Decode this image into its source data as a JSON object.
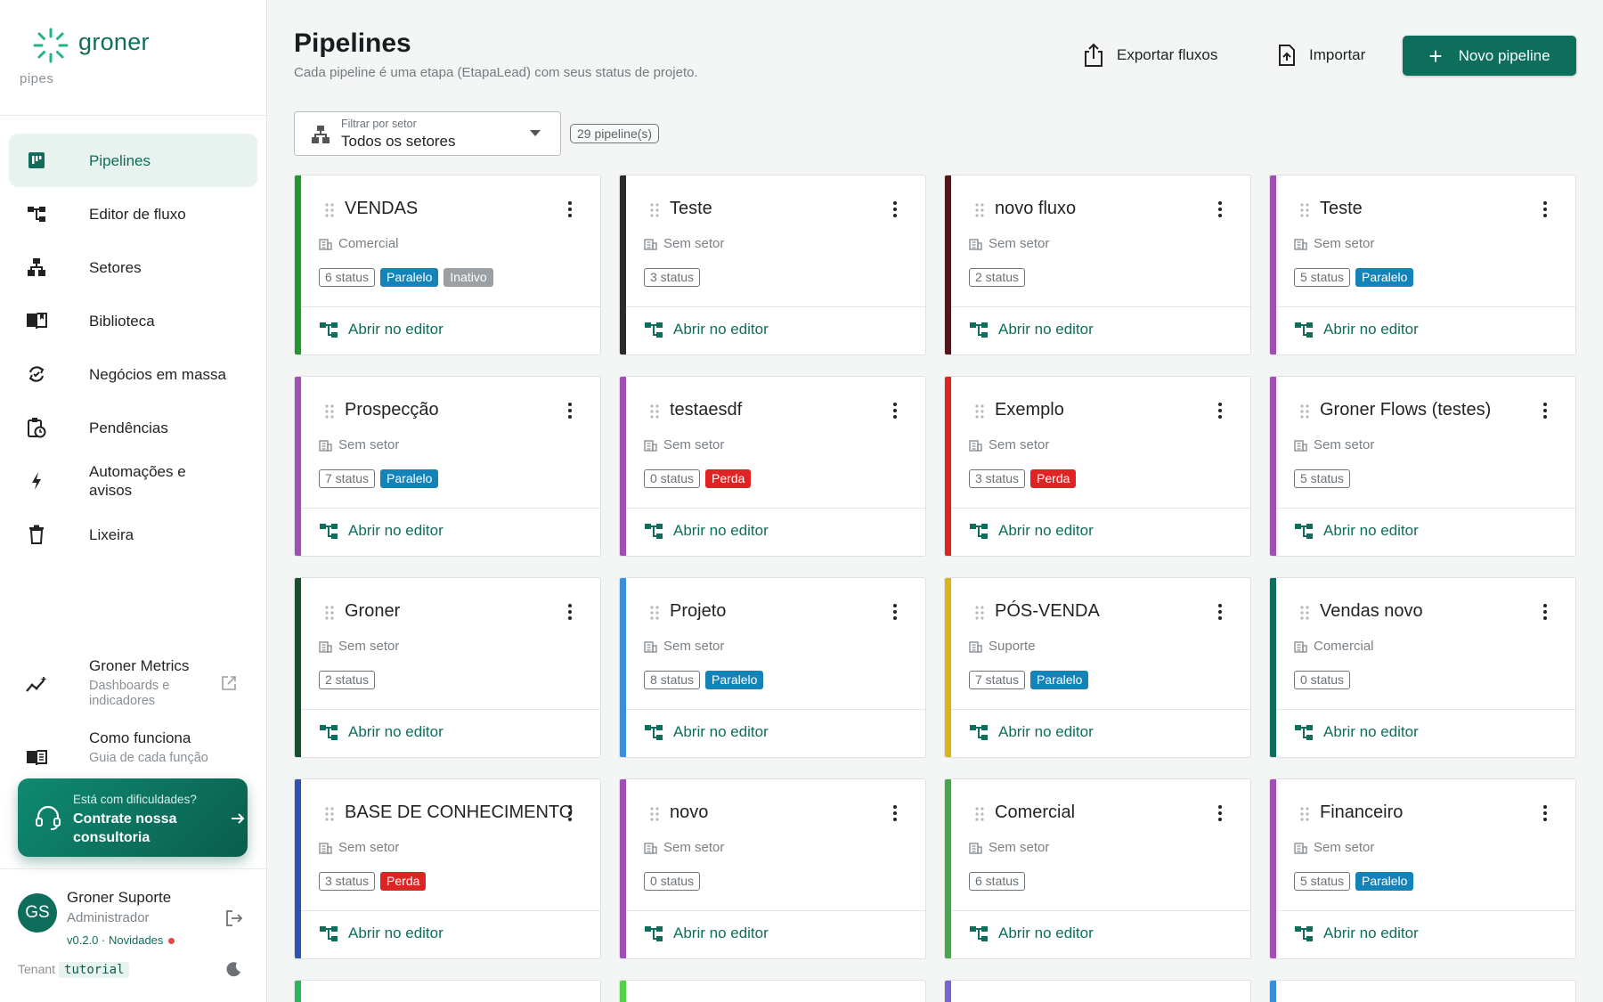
{
  "app": {
    "logo_name": "groner",
    "logo_sub": "pipes",
    "brand_color": "#0e6e5b"
  },
  "sidebar": {
    "items": [
      {
        "label": "Pipelines",
        "icon": "kanban-icon",
        "active": true
      },
      {
        "label": "Editor de fluxo",
        "icon": "flow-editor-icon"
      },
      {
        "label": "Setores",
        "icon": "sitemap-icon"
      },
      {
        "label": "Biblioteca",
        "icon": "book-icon"
      },
      {
        "label": "Negócios em massa",
        "icon": "bulk-sync-icon"
      },
      {
        "label": "Pendências",
        "icon": "clipboard-clock-icon"
      },
      {
        "label": "Automações e avisos",
        "icon": "lightning-icon"
      },
      {
        "label": "Lixeira",
        "icon": "trash-icon"
      }
    ],
    "metrics": {
      "title": "Groner Metrics",
      "desc": "Dashboards e indicadores"
    },
    "howto": {
      "title": "Como funciona",
      "desc": "Guia de cada função"
    },
    "consult": {
      "top": "Está com dificuldades?",
      "main": "Contrate nossa consultoria"
    },
    "user": {
      "initials": "GS",
      "name": "Groner Suporte",
      "role": "Administrador",
      "version": "v0.2.0",
      "news": "Novidades",
      "tenant_label": "Tenant",
      "tenant_code": "tutorial"
    }
  },
  "header": {
    "title": "Pipelines",
    "subtitle": "Cada pipeline é uma etapa (EtapaLead) com seus status de projeto.",
    "export_label": "Exportar fluxos",
    "import_label": "Importar",
    "new_label": "Novo pipeline"
  },
  "filter": {
    "label": "Filtrar por setor",
    "value": "Todos os setores",
    "count": "29 pipeline(s)"
  },
  "open_label": "Abrir no editor",
  "pipelines": [
    {
      "title": "VENDAS",
      "sector": "Comercial",
      "status": "6 status",
      "tags": [
        "Paralelo",
        "Inativo"
      ],
      "color": "#1e9a2c"
    },
    {
      "title": "Teste",
      "sector": "Sem setor",
      "status": "3 status",
      "tags": [],
      "color": "#2b2b2b"
    },
    {
      "title": "novo fluxo",
      "sector": "Sem setor",
      "status": "2 status",
      "tags": [],
      "color": "#5a1418"
    },
    {
      "title": "Teste",
      "sector": "Sem setor",
      "status": "5 status",
      "tags": [
        "Paralelo"
      ],
      "color": "#a04fb5"
    },
    {
      "title": "Prospecção",
      "sector": "Sem setor",
      "status": "7 status",
      "tags": [
        "Paralelo"
      ],
      "color": "#a04fb5"
    },
    {
      "title": "testaesdf",
      "sector": "Sem setor",
      "status": "0 status",
      "tags": [
        "Perda"
      ],
      "color": "#a04fb5"
    },
    {
      "title": "Exemplo",
      "sector": "Sem setor",
      "status": "3 status",
      "tags": [
        "Perda"
      ],
      "color": "#e02424"
    },
    {
      "title": "Groner Flows (testes)",
      "sector": "Sem setor",
      "status": "5 status",
      "tags": [],
      "color": "#a04fb5"
    },
    {
      "title": "Groner",
      "sector": "Sem setor",
      "status": "2 status",
      "tags": [],
      "color": "#17502d"
    },
    {
      "title": "Projeto",
      "sector": "Sem setor",
      "status": "8 status",
      "tags": [
        "Paralelo"
      ],
      "color": "#3b8fd6"
    },
    {
      "title": "PÓS-VENDA",
      "sector": "Suporte",
      "status": "7 status",
      "tags": [
        "Paralelo"
      ],
      "color": "#e0b219"
    },
    {
      "title": "Vendas novo",
      "sector": "Comercial",
      "status": "0 status",
      "tags": [],
      "color": "#0e6e5b"
    },
    {
      "title": "BASE DE CONHECIMENTO",
      "sector": "Sem setor",
      "status": "3 status",
      "tags": [
        "Perda"
      ],
      "color": "#2d53b5"
    },
    {
      "title": "novo",
      "sector": "Sem setor",
      "status": "0 status",
      "tags": [],
      "color": "#a04fb5"
    },
    {
      "title": "Comercial",
      "sector": "Sem setor",
      "status": "6 status",
      "tags": [],
      "color": "#43a84a"
    },
    {
      "title": "Financeiro",
      "sector": "Sem setor",
      "status": "5 status",
      "tags": [
        "Paralelo"
      ],
      "color": "#a04fb5"
    }
  ],
  "partial_colors": [
    "#2cb55a",
    "#55d04a",
    "#7a63d2",
    "#3b8fd6"
  ]
}
